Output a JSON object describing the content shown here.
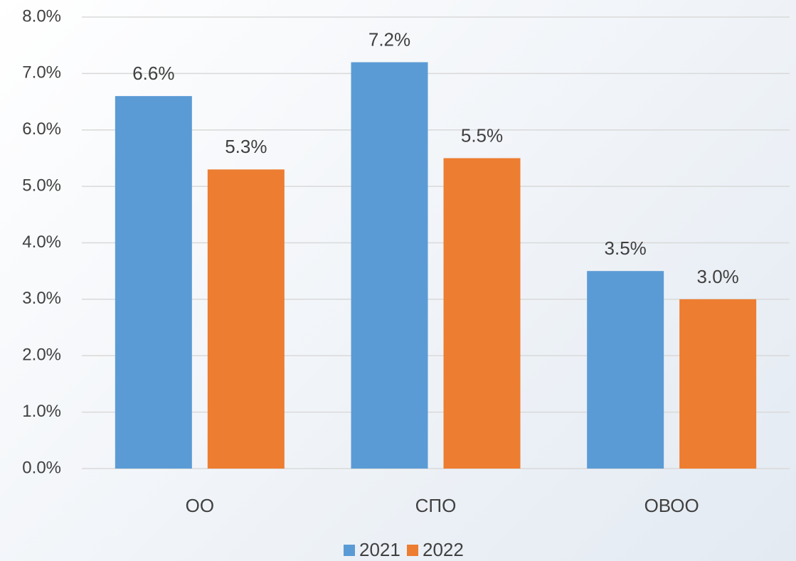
{
  "chart_data": {
    "type": "bar",
    "categories": [
      "ОО",
      "СПО",
      "ОВОО"
    ],
    "series": [
      {
        "name": "2021",
        "color": "#5b9bd5",
        "values": [
          6.6,
          7.2,
          3.5
        ],
        "value_labels": [
          "6.6%",
          "7.2%",
          "3.5%"
        ]
      },
      {
        "name": "2022",
        "color": "#ed7d31",
        "values": [
          5.3,
          5.5,
          3.0
        ],
        "value_labels": [
          "5.3%",
          "5.5%",
          "3.0%"
        ]
      }
    ],
    "ylim": [
      0,
      8
    ],
    "yticks": [
      {
        "value": 0,
        "label": "0.0%"
      },
      {
        "value": 1,
        "label": "1.0%"
      },
      {
        "value": 2,
        "label": "2.0%"
      },
      {
        "value": 3,
        "label": "3.0%"
      },
      {
        "value": 4,
        "label": "4.0%"
      },
      {
        "value": 5,
        "label": "5.0%"
      },
      {
        "value": 6,
        "label": "6.0%"
      },
      {
        "value": 7,
        "label": "7.0%"
      },
      {
        "value": 8,
        "label": "8.0%"
      }
    ],
    "grid": true,
    "legend": "bottom"
  }
}
